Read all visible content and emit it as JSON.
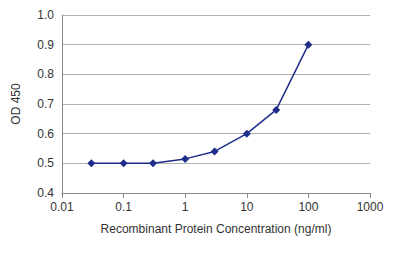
{
  "chart_data": {
    "type": "line",
    "x": [
      0.03,
      0.1,
      0.3,
      1,
      3,
      10,
      30,
      100
    ],
    "values": [
      0.5,
      0.5,
      0.5,
      0.515,
      0.54,
      0.6,
      0.68,
      0.9
    ],
    "color": "#1f2d8a",
    "marker": "diamond",
    "x_label": "Recombinant Protein Concentration (ng/ml)",
    "y_label": "OD 450",
    "log": "x",
    "xlim": [
      0.01,
      1000
    ],
    "xticks": [
      0.01,
      0.1,
      1,
      10,
      100,
      1000
    ],
    "ylim": [
      0.4,
      1
    ],
    "yticks": [
      0.4,
      0.5,
      0.6,
      0.7,
      0.8,
      0.9,
      {
        "value": 1,
        "label": "1.0"
      }
    ],
    "grid": true
  }
}
